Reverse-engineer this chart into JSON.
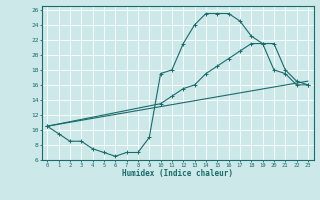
{
  "xlabel": "Humidex (Indice chaleur)",
  "bg_color": "#cce8e8",
  "grid_color": "#ffffff",
  "line_color": "#1a6b6b",
  "x_min": -0.5,
  "x_max": 23.5,
  "y_min": 6,
  "y_max": 26.5,
  "line1_x": [
    0,
    1,
    2,
    3,
    4,
    5,
    6,
    7,
    8,
    9,
    10,
    11,
    12,
    13,
    14,
    15,
    16,
    17,
    18,
    19,
    20,
    21,
    22,
    23
  ],
  "line1_y": [
    10.5,
    9.5,
    8.5,
    8.5,
    7.5,
    7.0,
    6.5,
    7.0,
    7.0,
    9.0,
    17.5,
    18.0,
    21.5,
    24.0,
    25.5,
    25.5,
    25.5,
    24.5,
    22.5,
    21.5,
    18.0,
    17.5,
    16.0,
    16.0
  ],
  "line2_x": [
    0,
    23
  ],
  "line2_y": [
    10.5,
    16.5
  ],
  "line3_x": [
    0,
    10,
    11,
    12,
    13,
    14,
    15,
    16,
    17,
    18,
    19,
    20,
    21,
    22,
    23
  ],
  "line3_y": [
    10.5,
    13.5,
    14.5,
    15.5,
    16.0,
    17.5,
    18.5,
    19.5,
    20.5,
    21.5,
    21.5,
    21.5,
    18.0,
    16.5,
    16.0
  ],
  "yticks": [
    6,
    8,
    10,
    12,
    14,
    16,
    18,
    20,
    22,
    24,
    26
  ],
  "xticks": [
    0,
    1,
    2,
    3,
    4,
    5,
    6,
    7,
    8,
    9,
    10,
    11,
    12,
    13,
    14,
    15,
    16,
    17,
    18,
    19,
    20,
    21,
    22,
    23
  ]
}
